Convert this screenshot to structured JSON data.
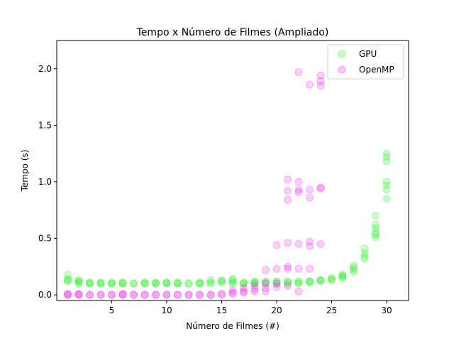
{
  "chart_data": {
    "type": "scatter",
    "title": "Tempo x Número de Filmes (Ampliado)",
    "xlabel": "Número de Filmes (#)",
    "ylabel": "Tempo (s)",
    "xlim": [
      0,
      32
    ],
    "ylim": [
      -0.05,
      2.25
    ],
    "xticks": [
      5,
      10,
      15,
      20,
      25,
      30
    ],
    "yticks": [
      0.0,
      0.5,
      1.0,
      1.5,
      2.0
    ],
    "xtick_labels": [
      "5",
      "10",
      "15",
      "20",
      "25",
      "30"
    ],
    "ytick_labels": [
      "0.0",
      "0.5",
      "1.0",
      "1.5",
      "2.0"
    ],
    "legend_position": "top-right",
    "grid": false,
    "series": [
      {
        "name": "GPU",
        "color": "#22ee22",
        "points": [
          [
            1,
            0.18
          ],
          [
            1,
            0.14
          ],
          [
            1,
            0.12
          ],
          [
            1,
            0.13
          ],
          [
            2,
            0.13
          ],
          [
            2,
            0.11
          ],
          [
            2,
            0.1
          ],
          [
            2,
            0.12
          ],
          [
            3,
            0.11
          ],
          [
            3,
            0.1
          ],
          [
            3,
            0.1
          ],
          [
            4,
            0.1
          ],
          [
            4,
            0.1
          ],
          [
            4,
            0.11
          ],
          [
            5,
            0.1
          ],
          [
            5,
            0.1
          ],
          [
            5,
            0.11
          ],
          [
            6,
            0.1
          ],
          [
            6,
            0.1
          ],
          [
            6,
            0.11
          ],
          [
            7,
            0.1
          ],
          [
            7,
            0.1
          ],
          [
            8,
            0.1
          ],
          [
            8,
            0.1
          ],
          [
            8,
            0.11
          ],
          [
            9,
            0.1
          ],
          [
            9,
            0.1
          ],
          [
            9,
            0.11
          ],
          [
            10,
            0.1
          ],
          [
            10,
            0.1
          ],
          [
            10,
            0.11
          ],
          [
            11,
            0.1
          ],
          [
            11,
            0.1
          ],
          [
            11,
            0.11
          ],
          [
            12,
            0.1
          ],
          [
            12,
            0.1
          ],
          [
            13,
            0.1
          ],
          [
            13,
            0.1
          ],
          [
            13,
            0.11
          ],
          [
            14,
            0.1
          ],
          [
            14,
            0.11
          ],
          [
            14,
            0.13
          ],
          [
            15,
            0.11
          ],
          [
            15,
            0.12
          ],
          [
            15,
            0.13
          ],
          [
            16,
            0.1
          ],
          [
            16,
            0.11
          ],
          [
            16,
            0.13
          ],
          [
            16,
            0.14
          ],
          [
            17,
            0.1
          ],
          [
            17,
            0.1
          ],
          [
            17,
            0.11
          ],
          [
            18,
            0.1
          ],
          [
            18,
            0.1
          ],
          [
            18,
            0.11
          ],
          [
            18,
            0.12
          ],
          [
            19,
            0.1
          ],
          [
            19,
            0.11
          ],
          [
            19,
            0.12
          ],
          [
            20,
            0.1
          ],
          [
            20,
            0.11
          ],
          [
            20,
            0.12
          ],
          [
            21,
            0.1
          ],
          [
            21,
            0.11
          ],
          [
            21,
            0.12
          ],
          [
            22,
            0.1
          ],
          [
            22,
            0.11
          ],
          [
            22,
            0.12
          ],
          [
            23,
            0.11
          ],
          [
            23,
            0.12
          ],
          [
            23,
            0.12
          ],
          [
            24,
            0.12
          ],
          [
            24,
            0.13
          ],
          [
            24,
            0.13
          ],
          [
            25,
            0.13
          ],
          [
            25,
            0.14
          ],
          [
            25,
            0.15
          ],
          [
            26,
            0.15
          ],
          [
            26,
            0.16
          ],
          [
            26,
            0.17
          ],
          [
            26,
            0.18
          ],
          [
            27,
            0.2
          ],
          [
            27,
            0.22
          ],
          [
            27,
            0.24
          ],
          [
            27,
            0.26
          ],
          [
            28,
            0.32
          ],
          [
            28,
            0.34
          ],
          [
            28,
            0.37
          ],
          [
            28,
            0.41
          ],
          [
            29,
            0.51
          ],
          [
            29,
            0.53
          ],
          [
            29,
            0.55
          ],
          [
            29,
            0.59
          ],
          [
            29,
            0.62
          ],
          [
            29,
            0.7
          ],
          [
            30,
            0.85
          ],
          [
            30,
            0.93
          ],
          [
            30,
            0.97
          ],
          [
            30,
            1.0
          ],
          [
            30,
            1.18
          ],
          [
            30,
            1.22
          ],
          [
            30,
            1.25
          ]
        ]
      },
      {
        "name": "OpenMP",
        "color": "#ee22ee",
        "points": [
          [
            1,
            0.0
          ],
          [
            1,
            0.0
          ],
          [
            1,
            0.01
          ],
          [
            2,
            0.0
          ],
          [
            2,
            0.0
          ],
          [
            2,
            0.01
          ],
          [
            3,
            0.0
          ],
          [
            3,
            0.0
          ],
          [
            4,
            0.0
          ],
          [
            4,
            0.0
          ],
          [
            5,
            0.0
          ],
          [
            5,
            0.0
          ],
          [
            6,
            0.0
          ],
          [
            6,
            0.0
          ],
          [
            6,
            0.01
          ],
          [
            7,
            0.0
          ],
          [
            7,
            0.0
          ],
          [
            8,
            0.0
          ],
          [
            8,
            0.0
          ],
          [
            9,
            0.0
          ],
          [
            9,
            0.0
          ],
          [
            10,
            0.0
          ],
          [
            10,
            0.0
          ],
          [
            11,
            0.0
          ],
          [
            11,
            0.0
          ],
          [
            12,
            0.0
          ],
          [
            12,
            0.0
          ],
          [
            13,
            0.0
          ],
          [
            13,
            0.0
          ],
          [
            14,
            0.0
          ],
          [
            14,
            0.0
          ],
          [
            15,
            0.0
          ],
          [
            15,
            0.01
          ],
          [
            16,
            0.01
          ],
          [
            16,
            0.02
          ],
          [
            16,
            0.04
          ],
          [
            17,
            0.02
          ],
          [
            17,
            0.03
          ],
          [
            17,
            0.06
          ],
          [
            18,
            0.03
          ],
          [
            18,
            0.05
          ],
          [
            18,
            0.08
          ],
          [
            19,
            0.03
          ],
          [
            19,
            0.06
          ],
          [
            19,
            0.1
          ],
          [
            19,
            0.22
          ],
          [
            20,
            0.07
          ],
          [
            20,
            0.1
          ],
          [
            20,
            0.23
          ],
          [
            20,
            0.44
          ],
          [
            21,
            0.08
          ],
          [
            21,
            0.23
          ],
          [
            21,
            0.25
          ],
          [
            21,
            0.46
          ],
          [
            21,
            0.84
          ],
          [
            21,
            0.92
          ],
          [
            21,
            1.02
          ],
          [
            22,
            0.03
          ],
          [
            22,
            0.23
          ],
          [
            22,
            0.45
          ],
          [
            22,
            0.91
          ],
          [
            22,
            0.93
          ],
          [
            22,
            1.0
          ],
          [
            22,
            1.97
          ],
          [
            23,
            0.23
          ],
          [
            23,
            0.43
          ],
          [
            23,
            0.47
          ],
          [
            23,
            0.86
          ],
          [
            23,
            0.93
          ],
          [
            23,
            1.86
          ],
          [
            24,
            0.45
          ],
          [
            24,
            0.94
          ],
          [
            24,
            0.95
          ],
          [
            24,
            1.85
          ],
          [
            24,
            1.89
          ],
          [
            24,
            1.94
          ]
        ]
      }
    ]
  }
}
